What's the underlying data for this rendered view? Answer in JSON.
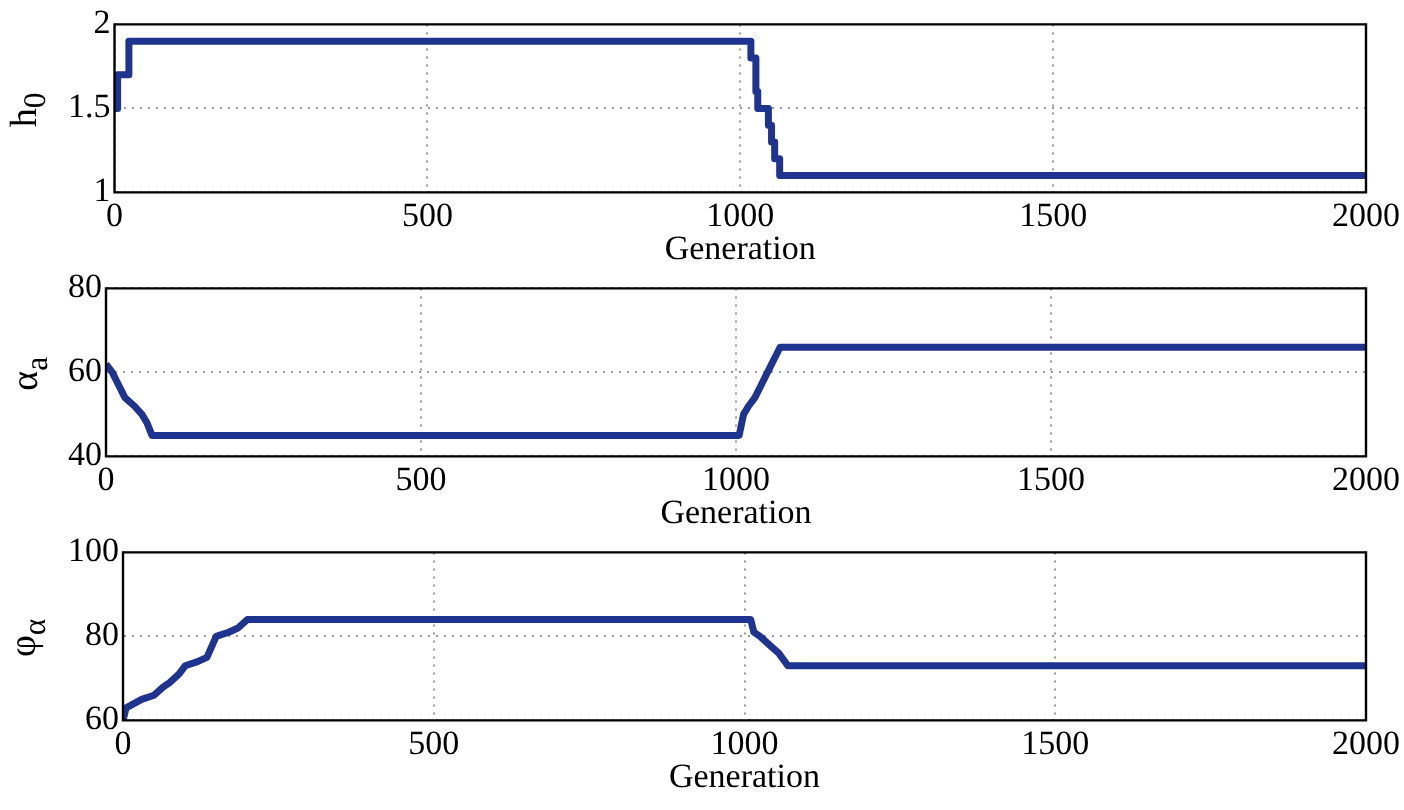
{
  "chart_data": [
    {
      "type": "step",
      "xlabel": "Generation",
      "ylabel": "h$_{0}$",
      "color": "#1f3490",
      "x": [
        0,
        5,
        23,
        1017,
        1025,
        1028,
        1045,
        1050,
        1055,
        1063,
        2000
      ],
      "values": [
        1.5,
        1.7,
        1.9,
        1.8,
        1.6,
        1.5,
        1.4,
        1.3,
        1.2,
        1.1,
        1.1
      ],
      "xlim": [
        0,
        2000
      ],
      "xticks": [
        0,
        500,
        1000,
        1500,
        2000
      ],
      "ylim": [
        1,
        2
      ],
      "yticks": [
        1,
        1.5,
        2
      ],
      "grid": true
    },
    {
      "type": "line",
      "xlabel": "Generation",
      "ylabel": "α$_{a}$",
      "color": "#1f3490",
      "x": [
        0,
        10,
        20,
        30,
        45,
        57,
        65,
        73,
        1005,
        1012,
        1020,
        1030,
        1040,
        1050,
        1060,
        1070,
        2000
      ],
      "values": [
        62,
        60,
        57,
        54,
        52,
        50,
        48,
        45,
        45,
        50,
        52,
        54,
        57,
        60,
        63,
        66,
        66
      ],
      "xlim": [
        0,
        2000
      ],
      "xticks": [
        0,
        500,
        1000,
        1500,
        2000
      ],
      "ylim": [
        40,
        80
      ],
      "yticks": [
        40,
        60,
        80
      ],
      "grid": true
    },
    {
      "type": "line",
      "xlabel": "Generation",
      "ylabel": "φ$_{α}$",
      "color": "#1f3490",
      "x": [
        0,
        5,
        30,
        50,
        65,
        75,
        90,
        100,
        120,
        135,
        150,
        170,
        185,
        200,
        1010,
        1015,
        1025,
        1040,
        1055,
        1070,
        2000
      ],
      "values": [
        60,
        63,
        65,
        66,
        68,
        69,
        71,
        73,
        74,
        75,
        80,
        81,
        82,
        84,
        84,
        81,
        80,
        78,
        76,
        73,
        73
      ],
      "xlim": [
        0,
        2000
      ],
      "xticks": [
        0,
        500,
        1000,
        1500,
        2000
      ],
      "ylim": [
        60,
        100
      ],
      "yticks": [
        60,
        80,
        100
      ],
      "grid": true
    }
  ]
}
